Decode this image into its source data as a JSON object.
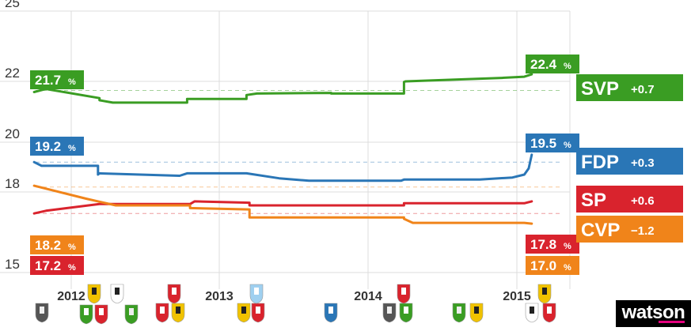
{
  "chart_data": {
    "type": "line",
    "ylim": [
      15,
      25
    ],
    "yticks": [
      "15",
      "18",
      "20",
      "22",
      "25"
    ],
    "xticks": [
      "2012",
      "2013",
      "2014",
      "2015"
    ],
    "grid": true,
    "series": [
      {
        "name": "SVP",
        "change": "+0.7",
        "color": "#3a9d23",
        "start_label": "21.7",
        "end_label": "22.4",
        "unit": "%",
        "baseline": 21.7,
        "x": [
          2011.75,
          2011.83,
          2012.19,
          2012.19,
          2012.28,
          2012.78,
          2012.78,
          2013.18,
          2013.18,
          2013.25,
          2013.75,
          2013.75,
          2014.24,
          2014.24,
          2014.25,
          2014.9,
          2015.05,
          2015.1
        ],
        "values": [
          21.65,
          21.75,
          21.45,
          21.38,
          21.3,
          21.3,
          21.42,
          21.42,
          21.55,
          21.6,
          21.62,
          21.6,
          21.6,
          21.98,
          22.0,
          22.15,
          22.2,
          22.3
        ]
      },
      {
        "name": "FDP",
        "change": "+0.3",
        "color": "#2a76b6",
        "start_label": "19.2",
        "end_label": "19.5",
        "unit": "%",
        "baseline": 19.2,
        "x": [
          2011.75,
          2011.8,
          2012.18,
          2012.18,
          2012.19,
          2012.73,
          2012.78,
          2013.18,
          2013.4,
          2013.6,
          2014.22,
          2014.24,
          2014.75,
          2014.97,
          2015.05,
          2015.08,
          2015.1
        ],
        "values": [
          19.2,
          19.05,
          19.05,
          18.7,
          18.75,
          18.65,
          18.75,
          18.75,
          18.55,
          18.45,
          18.45,
          18.5,
          18.5,
          18.58,
          18.7,
          18.95,
          19.5
        ]
      },
      {
        "name": "SP",
        "change": "+0.6",
        "color": "#d9232d",
        "start_label": "17.2",
        "end_label": "17.8",
        "unit": "%",
        "baseline": 17.2,
        "x": [
          2011.75,
          2011.83,
          2012.19,
          2012.8,
          2012.83,
          2013.2,
          2013.2,
          2013.4,
          2014.24,
          2014.24,
          2014.75,
          2015.05,
          2015.1
        ],
        "values": [
          17.2,
          17.3,
          17.55,
          17.55,
          17.65,
          17.6,
          17.5,
          17.5,
          17.5,
          17.58,
          17.58,
          17.58,
          17.65
        ]
      },
      {
        "name": "CVP",
        "change": "−1.2",
        "color": "#f0841a",
        "start_label": "18.2",
        "end_label": "17.0",
        "unit": "%",
        "baseline": 18.2,
        "x": [
          2011.75,
          2012.1,
          2012.3,
          2012.8,
          2012.8,
          2013.2,
          2013.2,
          2013.5,
          2014.24,
          2014.24,
          2014.3,
          2014.65,
          2015.05,
          2015.1
        ],
        "values": [
          18.25,
          17.75,
          17.5,
          17.5,
          17.4,
          17.35,
          17.05,
          17.05,
          17.05,
          17.0,
          16.85,
          16.85,
          16.85,
          16.82
        ]
      }
    ]
  },
  "flags": [
    {
      "colors": [
        "#555555",
        "#eeeeee"
      ],
      "icon": "flag-icon"
    },
    {
      "colors": [
        "#3a9d23",
        "#ffffff"
      ],
      "icon": "flag-icon"
    },
    {
      "colors": [
        "#d9232d",
        "#ffffff"
      ],
      "icon": "flag-icon"
    },
    {
      "colors": [
        "#3a9d23",
        "#eeeeee"
      ],
      "icon": "flag-icon"
    },
    {
      "colors": [
        "#f0c200",
        "#222222"
      ],
      "icon": "flag-icon"
    },
    {
      "colors": [
        "#ffffff",
        "#222222"
      ],
      "icon": "flag-icon"
    },
    {
      "colors": [
        "#d9232d",
        "#ffffff"
      ],
      "icon": "flag-icon"
    },
    {
      "colors": [
        "#f0c200",
        "#222222"
      ],
      "icon": "flag-icon"
    },
    {
      "colors": [
        "#d9232d",
        "#ffffff"
      ],
      "icon": "flag-icon"
    },
    {
      "colors": [
        "#f0c200",
        "#222222"
      ],
      "icon": "flag-icon"
    },
    {
      "colors": [
        "#d9232d",
        "#ffffff"
      ],
      "icon": "flag-icon"
    },
    {
      "colors": [
        "#9fd0f0",
        "#ffffff"
      ],
      "icon": "flag-icon"
    },
    {
      "colors": [
        "#2a76b6",
        "#ffffff"
      ],
      "icon": "flag-icon"
    }
  ],
  "brand": {
    "logo_text": "watson",
    "accent": "#e4007d"
  }
}
